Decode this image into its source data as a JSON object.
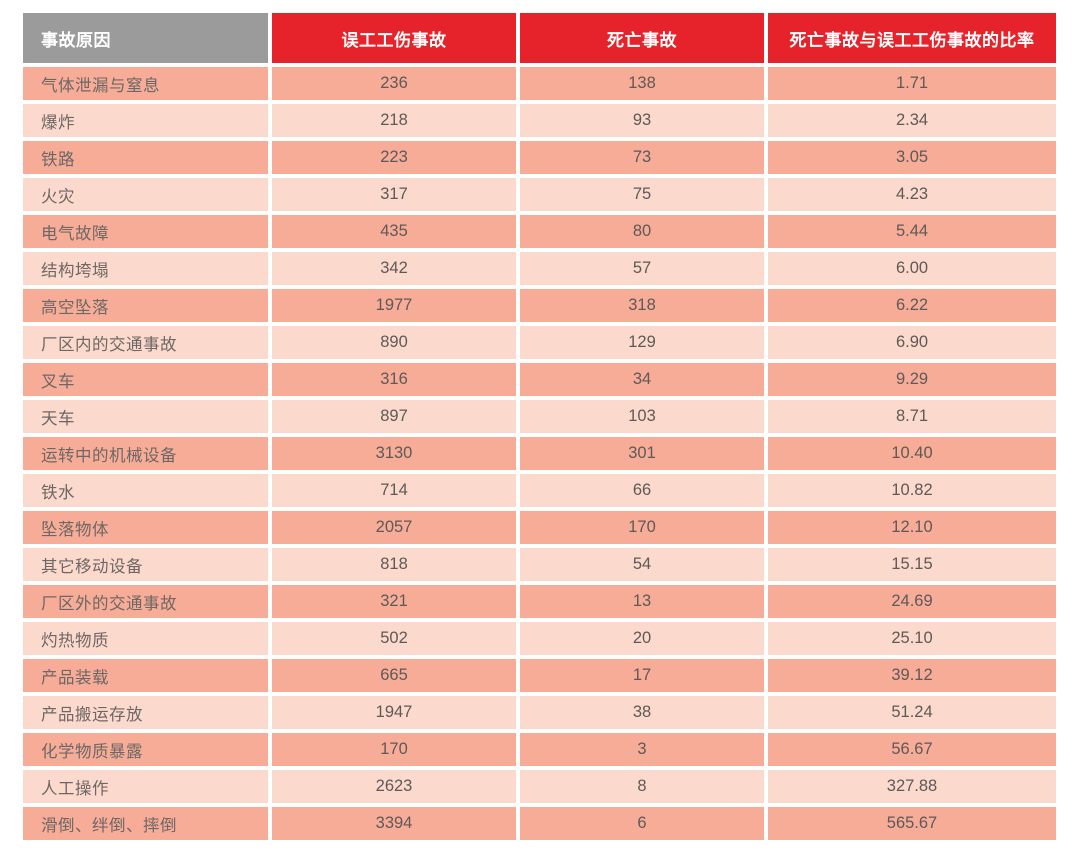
{
  "colors": {
    "header_gray": "#9b9b9b",
    "header_red": "#e6232a",
    "row_dark": "#f6ac97",
    "row_light": "#fbd9cc",
    "header_text": "#ffffff",
    "body_text": "#5f5957"
  },
  "table": {
    "columns": [
      "事故原因",
      "误工工伤事故",
      "死亡事故",
      "死亡事故与误工工伤事故的比率"
    ],
    "rows": [
      [
        "气体泄漏与窒息",
        "236",
        "138",
        "1.71"
      ],
      [
        "爆炸",
        "218",
        "93",
        "2.34"
      ],
      [
        "铁路",
        "223",
        "73",
        "3.05"
      ],
      [
        "火灾",
        "317",
        "75",
        "4.23"
      ],
      [
        "电气故障",
        "435",
        "80",
        "5.44"
      ],
      [
        "结构垮塌",
        "342",
        "57",
        "6.00"
      ],
      [
        "高空坠落",
        "1977",
        "318",
        "6.22"
      ],
      [
        "厂区内的交通事故",
        "890",
        "129",
        "6.90"
      ],
      [
        "叉车",
        "316",
        "34",
        "9.29"
      ],
      [
        "天车",
        "897",
        "103",
        "8.71"
      ],
      [
        "运转中的机械设备",
        "3130",
        "301",
        "10.40"
      ],
      [
        "铁水",
        "714",
        "66",
        "10.82"
      ],
      [
        "坠落物体",
        "2057",
        "170",
        "12.10"
      ],
      [
        "其它移动设备",
        "818",
        "54",
        "15.15"
      ],
      [
        "厂区外的交通事故",
        "321",
        "13",
        "24.69"
      ],
      [
        "灼热物质",
        "502",
        "20",
        "25.10"
      ],
      [
        "产品装载",
        "665",
        "17",
        "39.12"
      ],
      [
        "产品搬运存放",
        "1947",
        "38",
        "51.24"
      ],
      [
        "化学物质暴露",
        "170",
        "3",
        "56.67"
      ],
      [
        "人工操作",
        "2623",
        "8",
        "327.88"
      ],
      [
        "滑倒、绊倒、摔倒",
        "3394",
        "6",
        "565.67"
      ]
    ]
  },
  "chart_data": {
    "type": "table",
    "title": "",
    "columns": [
      "事故原因",
      "误工工伤事故",
      "死亡事故",
      "死亡事故与误工工伤事故的比率"
    ],
    "categories": [
      "气体泄漏与窒息",
      "爆炸",
      "铁路",
      "火灾",
      "电气故障",
      "结构垮塌",
      "高空坠落",
      "厂区内的交通事故",
      "叉车",
      "天车",
      "运转中的机械设备",
      "铁水",
      "坠落物体",
      "其它移动设备",
      "厂区外的交通事故",
      "灼热物质",
      "产品装载",
      "产品搬运存放",
      "化学物质暴露",
      "人工操作",
      "滑倒、绊倒、摔倒"
    ],
    "series": [
      {
        "name": "误工工伤事故",
        "values": [
          236,
          218,
          223,
          317,
          435,
          342,
          1977,
          890,
          316,
          897,
          3130,
          714,
          2057,
          818,
          321,
          502,
          665,
          1947,
          170,
          2623,
          3394
        ]
      },
      {
        "name": "死亡事故",
        "values": [
          138,
          93,
          73,
          75,
          80,
          57,
          318,
          129,
          34,
          103,
          301,
          66,
          170,
          54,
          13,
          20,
          17,
          38,
          3,
          8,
          6
        ]
      },
      {
        "name": "死亡事故与误工工伤事故的比率",
        "values": [
          1.71,
          2.34,
          3.05,
          4.23,
          5.44,
          6.0,
          6.22,
          6.9,
          9.29,
          8.71,
          10.4,
          10.82,
          12.1,
          15.15,
          24.69,
          25.1,
          39.12,
          51.24,
          56.67,
          327.88,
          565.67
        ]
      }
    ]
  }
}
